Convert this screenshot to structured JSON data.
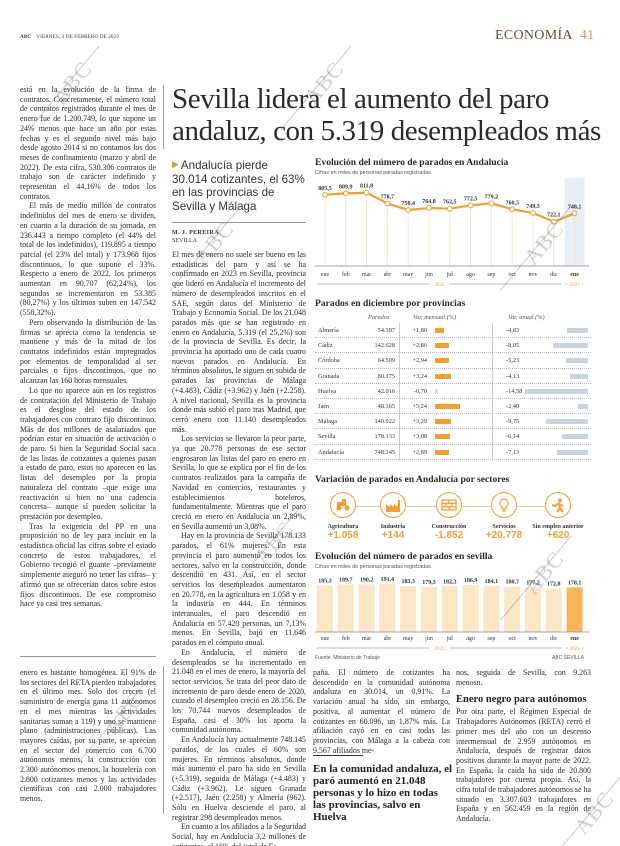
{
  "header": {
    "brand": "ABC",
    "date": "VIERNES, 3 DE FEBRERO DE 2023",
    "section": "ECONOMÍA",
    "page_number": "41"
  },
  "article": {
    "headline_line1": "Sevilla lidera el aumento del paro",
    "headline_line2": "andaluz, con 5.319 desempleados más",
    "subhead": "Andalucía pierde 30.014 cotizantes, el 63% en las provincias de Sevilla y Málaga",
    "author": "M. J. PEREIRA",
    "location": "SEVILLA",
    "left_top": [
      "está en la evolución de la firma de contratos. Concretamente, el número total de contratos registrados durante el mes de enero fue de 1.200.749, lo que supone un 24% menos que hace un año por estas fechas y es el segundo nivel más bajo desde agosto 2014 si no contamos los dos meses de confinamiento (marzo y abril de 2022). De esta cifra, 530.306 contratos de trabajo son de carácter indefinido y representan el 44,16% de todos los contratos.",
      "El más de medio millón de contratos indefinidos del mes de enero se dividen, en cuanto a la duración de su jornada, en 236.443 a tiempo completo (el 44% del total de los indefinidos), 119.895 a tiempo parcial (el 23% del total) y 173.968 fijos discontinuos, lo que supone el 33%. Respecto a enero de 2022, los primeros aumentan en 90.707 (62,24%), los segundos se incrementaron en 53.385 (80,27%) y los últimos suben en 147.542 (558,32%).",
      "Pero observando la distribución de las firmas se aprecia como la tendencia se mantiene y más de la mitad de los contratos indefinidos están impregnados por elementos de temporalidad al ser parciales o fijos discontinuos, que no alcanzan las 160 horas mensuales.",
      "Lo que no aparece aún en los registros de contratación del Ministerio de Trabajo es el desglose del estado de los trabajadores con contrato fijo discontinuo. Más de dos millones de asalariados que podrían estar en situación de activación o de paro. Si bien la Seguridad Social saca de las listas de cotizantes a quienes pasan a estado de paro, estos no aparecen en las listas del desempleo por la propia naturaleza del contrato –que exige una reactivación si bien no una cadencia concreta– aunque sí pueden solicitar la prestación por desempleo.",
      "Tras la exigencia del PP en una proposición no de ley para incluir en la estadística oficial las cifras sobre el estado concreto de estos trabajadores, el Gobierno recogió el guante –previamente simplemente aseguró no tener las cifras– y afirmó que se ofrecerían datos sobre estos fijos discontinuos. De ese compromiso hace ya casi tres semanas."
    ],
    "left_bottom": "enero es bastante homogénea. El 91% de los sectores del RETA pierden trabajadores en el último mes. Solo dos crecen (el suministro de energía gana 11 autónomos en el mes mientras las actividades sanitarias suman a 119) y uno se mantiene plano (administraciones públicas). Las mayores caídas, por su parte, se aprecian en el sector del comercio con 6.700 autónomos menos, la construcción con 2.300 autónomos menos, la hostelería con 2.800 cotizantes menos y las actividades científicas con casi 2.000 trabajadores menos.",
    "middle": [
      "El mes de enero no suele ser bueno en las estadísticas del paro y así se ha confirmado en 2023 en Sevilla, provincia que lideró en Andalucía el incremento del número de desempleados inscritos en el SAE, según datos del Ministerio de Trabajo y Economía Social. De los 21.048 parados más que se han registrado en enero en Andalucía, 5.319 (el 25,2%) son de la provincia de Sevilla. Es decir, la provincia ha aportado uno de cada cuatro nuevos parados en Andalucía. En términos absolutos, le siguen en subida de parados las provincias de Málaga (+4.483), Cádiz (+3.962) y Jaén (+2.258). A nivel nacional, Sevilla es la provincia donde más subió el paro tras Madrid, que cerró enero con 11.140 desempleados más.",
      "Los servicios se llevaron la peor parte, ya que 20.778 personas de ese sector engrosaron las listas del paro en enero en Sevilla, lo que se explica por el fin de los contratos realizados para la campaña de Navidad en comercios, restaurantes y establecimientos hoteleros, fundamentalmente. Mientras que el paro creció en enero en Andalucía un 2,89%, en Sevilla aumentó un 3,08%.",
      "Hay en la provincia de Sevilla 178.133 parados, el 61% mujeres. En esta provincia el paro aumentó en todos los sectores, salvo en la construcción, donde descendió en 431. Así, en el sector servicios los desempleados aumentaron en 20.778, en la agricultura en 1.058 y en la industria en 444. En términos interanuales, el paro descendió en Andalucía en 57.420 personas, un 7,13% menos. En Sevilla, bajó en 11.646 parados en el cómputo anual.",
      "En Andalucía, el número de desempleados se ha incrementado en 21.048 en el mes de enero, la mayoría del sector servicios. Se trata del peor dato de incremento de paro desde enero de 2020, cuando el desempleo creció en 28.156. De los 70.744 nuevos desempleados de España, casi el 30% los aporta la comunidad autónoma.",
      "En Andalucía hay actualmente 748.145 parados, de los cuales el 60% son mujeres. En términos absolutos, donde más aumento el paro ha sido en Sevilla (+5.319), seguida de Málaga (+4.483) y Cádiz (+3.962). Le siguen Granada (+2.517), Jaén (2.258) y Almería (962). Sólo en Huelva desciende el paro, al registrar 298 desempleados menos.",
      "En cuanto a los afiliados a la Seguridad Social, hay en Andalucía 3,2 millones de cotizantes, el 16% del total de Es-"
    ],
    "col3": "paña. El número de cotizantes ha descendido en la comunidad autónoma andaluza en 30.014, un 0,91%. La variación anual ha sido, sin embargo, positiva, al aumentar el número de cotizantes en 60.096, un 1,87% más. La afiliación cayó en en casi todas las provincias, con Málaga a la cabeza con 9.567 afiliados me-",
    "pull_quote": "En la comunidad andaluza, el paró aumentó en 21.048 personas y lo hizo en todas las provincias, salvo en Huelva",
    "col4_lead": "nos, seguida de Sevilla, con 9.263 menosn.",
    "col4_heading": "Enero negro para autónomos",
    "col4_body": "Por otra parte, el Régimen Especial de Trabajadores Autónomos (RETA) cerró el primer mes del año con un descenso intermensual de 2.959 autónomos en Andalucía, después de registrar datos positivos durante la mayor parte de 2022. En España, la caída ha sido de 20.800 trabajadores por cuenta propia. Así, la cifra total de trabajadores autónomos se ha situado en 3.307.603 trabajadores en España y en 562.459 en la región de Andalucía."
  },
  "watermark": "ABC",
  "colors": {
    "accent": "#f0a030",
    "bar_light": "#fbe6c6",
    "bar_current": "#f7b757",
    "annual_bar": "#c9d4e2",
    "highlight_col": "#e9eef5",
    "section": "#6b4f2a"
  },
  "chart_data": [
    {
      "type": "line",
      "title": "Evolución del número de parados en Andalucía",
      "subtitle": "Cifras en miles de personas paradas registradas",
      "categories": [
        "ene",
        "feb",
        "mar",
        "abr",
        "may",
        "jun",
        "jul",
        "ago",
        "sep",
        "oct",
        "nov",
        "dic",
        "ene"
      ],
      "values": [
        805.5,
        809.9,
        811.8,
        778.7,
        758.4,
        764.8,
        762.5,
        772.5,
        779.2,
        760.5,
        749.3,
        722.1,
        748.1
      ],
      "value_labels": [
        "805,5",
        "809,9",
        "811,8",
        "778,7",
        "758,4",
        "764,8",
        "762,5",
        "772,5",
        "779,2",
        "760,5",
        "749,3",
        "722,1",
        "748,1"
      ],
      "year_labels": [
        "2022",
        "2023"
      ],
      "grid": false
    },
    {
      "type": "table",
      "title": "Parados en diciembre por provincias",
      "columns": [
        "Parados",
        "Var. mensual (%)",
        "Var. anual (%)"
      ],
      "rows": [
        {
          "provincia": "Almería",
          "parados": "54.397",
          "mensual": 1.8,
          "mensual_label": "+1,80",
          "anual": -4.83,
          "anual_label": "-4,83"
        },
        {
          "provincia": "Cádiz",
          "parados": "142.628",
          "mensual": 2.86,
          "mensual_label": "+2,86",
          "anual": -8.05,
          "anual_label": "-8,05"
        },
        {
          "provincia": "Córdoba",
          "parados": "64.509",
          "mensual": 2.94,
          "mensual_label": "+2,94",
          "anual": -5.23,
          "anual_label": "-5,23"
        },
        {
          "provincia": "Granada",
          "parados": "80.175",
          "mensual": 3.24,
          "mensual_label": "+3,24",
          "anual": -4.13,
          "anual_label": "-4,13"
        },
        {
          "provincia": "Huelva",
          "parados": "42.016",
          "mensual": -0.7,
          "mensual_label": "-0,70",
          "anual": -14.58,
          "anual_label": "-14,58"
        },
        {
          "provincia": "Jaén",
          "parados": "48.365",
          "mensual": 5.24,
          "mensual_label": "+5,24",
          "anual": -2.4,
          "anual_label": "-2,40"
        },
        {
          "provincia": "Málaga",
          "parados": "140.922",
          "mensual": 3.29,
          "mensual_label": "+3,29",
          "anual": -9.75,
          "anual_label": "-9,75"
        },
        {
          "provincia": "Sevilla",
          "parados": "178.133",
          "mensual": 3.08,
          "mensual_label": "+3,08",
          "anual": -6.14,
          "anual_label": "-6,14"
        },
        {
          "provincia": "Andalucía",
          "parados": "748.145",
          "mensual": 2.89,
          "mensual_label": "+2,89",
          "anual": -7.13,
          "anual_label": "-7,13"
        }
      ]
    },
    {
      "type": "table",
      "title": "Variación de parados en Andalucía por sectores",
      "sectors": [
        {
          "name": "Agricultura",
          "value": "+1.058",
          "icon": "tractor-icon"
        },
        {
          "name": "Industria",
          "value": "+144",
          "icon": "factory-icon"
        },
        {
          "name": "Construcción",
          "value": "-1.852",
          "icon": "brick-wall-icon"
        },
        {
          "name": "Servicios",
          "value": "+20.778",
          "icon": "lightbulb-icon"
        },
        {
          "name": "Sin empleo anterior",
          "value": "+620",
          "icon": "person-icon"
        }
      ]
    },
    {
      "type": "bar",
      "title": "Evolución del número de parados en sevilla",
      "subtitle": "Cifras en miles de personas paradas registradas",
      "categories": [
        "ene",
        "feb",
        "mar",
        "abr",
        "may",
        "jun",
        "jul",
        "ago",
        "sep",
        "oct",
        "nov",
        "dic",
        "ene"
      ],
      "values": [
        185.3,
        189.7,
        190.2,
        191.4,
        183.3,
        179.3,
        182.3,
        186.9,
        184.1,
        180.7,
        177.2,
        172.8,
        178.1
      ],
      "value_labels": [
        "185,3",
        "189,7",
        "190,2",
        "191,4",
        "183,3",
        "179,3",
        "182,3",
        "186,9",
        "184,1",
        "180,7",
        "177,2",
        "172,8",
        "178,1"
      ],
      "year_labels": [
        "2022",
        "2023"
      ],
      "source": "Fuente: Ministerio de Trabajo",
      "credit": "ABC SEVILLA"
    }
  ]
}
